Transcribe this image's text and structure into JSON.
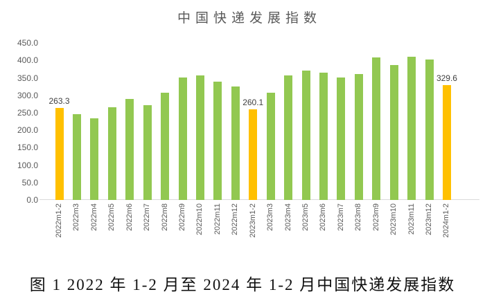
{
  "caption": {
    "text": "图 1  2022 年 1-2 月至 2024 年 1-2 月中国快递发展指数"
  },
  "chart_data": {
    "type": "bar",
    "title": "中国快递发展指数",
    "categories": [
      "2022m1-2",
      "2022m3",
      "2022m4",
      "2022m5",
      "2022m6",
      "2022m7",
      "2022m8",
      "2022m9",
      "2022m10",
      "2022m11",
      "2022m12",
      "2023m1-2",
      "2023m3",
      "2023m4",
      "2023m5",
      "2023m6",
      "2023m7",
      "2023m8",
      "2023m9",
      "2023m10",
      "2023m11",
      "2023m12",
      "2024m1-2"
    ],
    "values": [
      263.3,
      246,
      235,
      266,
      289,
      271,
      308,
      352,
      358,
      339,
      325,
      260.1,
      307,
      358,
      372,
      365,
      351,
      362,
      409,
      387,
      411,
      402,
      329.6
    ],
    "highlight_indices": [
      0,
      11,
      22
    ],
    "data_labels": [
      {
        "index": 0,
        "text": "263.3"
      },
      {
        "index": 11,
        "text": "260.1"
      },
      {
        "index": 22,
        "text": "329.6"
      }
    ],
    "bar_color": "#92C851",
    "highlight_color": "#FFC000",
    "axis_line_color": "#D9D9D9",
    "tick_text_color": "#595959",
    "label_text_color": "#404040",
    "ylim": [
      0,
      450
    ],
    "ytick_step": 50,
    "yticks": [
      "450.0",
      "400.0",
      "350.0",
      "300.0",
      "250.0",
      "200.0",
      "150.0",
      "100.0",
      "50.0",
      "0.0"
    ],
    "grid": false,
    "legend": "none",
    "xlabel": "",
    "ylabel": ""
  }
}
